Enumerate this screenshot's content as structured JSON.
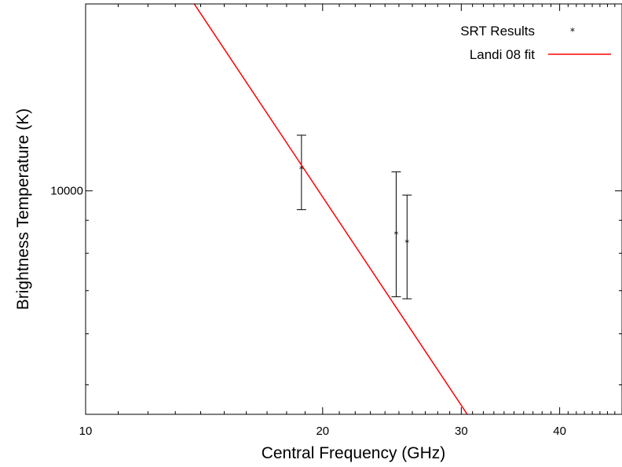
{
  "chart_data": {
    "type": "scatter",
    "xlabel": "Central Frequency (GHz)",
    "ylabel": "Brightness Temperature (K)",
    "x_scale": "log",
    "y_scale": "log",
    "xlim": [
      10,
      48
    ],
    "ylim": [
      4500,
      19500
    ],
    "x_ticks": [
      {
        "value": 10,
        "label": "10"
      },
      {
        "value": 20,
        "label": "20"
      },
      {
        "value": 30,
        "label": "30"
      },
      {
        "value": 40,
        "label": "40"
      }
    ],
    "y_ticks": [
      {
        "value": 10000,
        "label": "10000"
      }
    ],
    "grid": false,
    "legend_position": "top-right",
    "series": [
      {
        "name": "SRT Results",
        "kind": "points-with-errorbars",
        "marker": "*",
        "color": "#000000",
        "points": [
          {
            "x": 18.8,
            "y": 10800,
            "yerr_low": 9350,
            "yerr_high": 12200
          },
          {
            "x": 24.8,
            "y": 8550,
            "yerr_low": 6850,
            "yerr_high": 10700
          },
          {
            "x": 25.6,
            "y": 8300,
            "yerr_low": 6800,
            "yerr_high": 9850
          }
        ]
      },
      {
        "name": "Landi 08 fit",
        "kind": "line",
        "color": "#ff0000",
        "points": [
          {
            "x": 13.74,
            "y": 19500
          },
          {
            "x": 30.53,
            "y": 4500
          }
        ]
      }
    ]
  }
}
